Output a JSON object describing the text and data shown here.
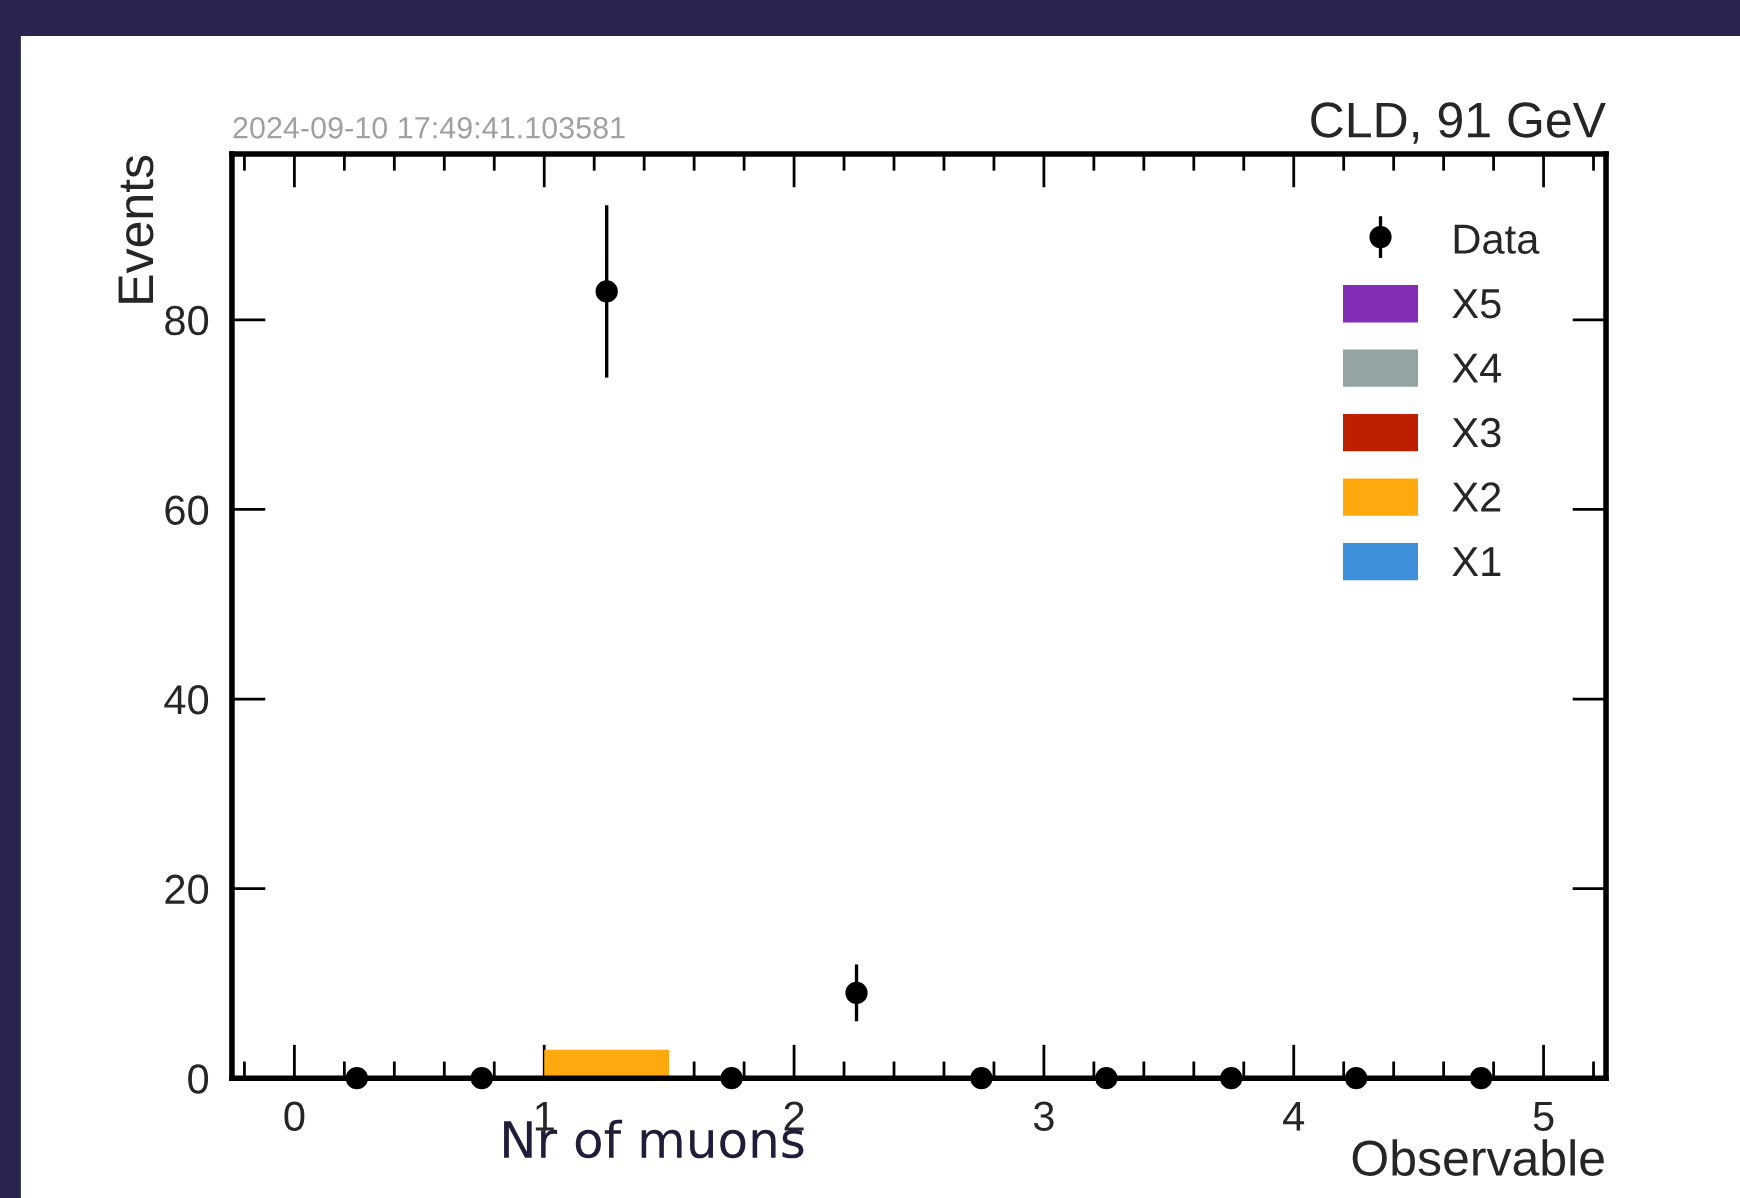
{
  "chart_data": {
    "type": "bar",
    "title": "CLD, 91 GeV",
    "xlabel": "Observable",
    "ylabel": "Events",
    "annotations": [
      "2024-09-10 17:49:41.103581",
      "Nr of muons"
    ],
    "x": [
      0.25,
      0.75,
      1.25,
      1.75,
      2.25,
      2.75,
      3.25,
      3.75,
      4.25,
      4.75
    ],
    "stacked": true,
    "series": [
      {
        "name": "X1",
        "color": "#3f90da",
        "values": [
          0,
          0,
          0,
          0,
          0,
          0,
          0,
          0,
          0,
          0
        ]
      },
      {
        "name": "X2",
        "color": "#ffa90e",
        "values": [
          0,
          0,
          3,
          0,
          0,
          0,
          0,
          0,
          0,
          0
        ]
      },
      {
        "name": "X3",
        "color": "#bd1f01",
        "values": [
          0,
          0,
          0,
          0,
          0,
          0,
          0,
          0,
          0,
          0
        ]
      },
      {
        "name": "X4",
        "color": "#94a4a2",
        "values": [
          0,
          0,
          0,
          0,
          0,
          0,
          0,
          0,
          0,
          0
        ]
      },
      {
        "name": "X5",
        "color": "#832db6",
        "values": [
          0,
          0,
          0,
          0,
          0,
          0,
          0,
          0,
          0,
          0
        ]
      },
      {
        "name": "Data",
        "type": "scatter",
        "color": "#000000",
        "marker": "circle",
        "values": [
          0,
          0,
          83,
          0,
          9,
          0,
          0,
          0,
          0,
          0
        ],
        "errors": [
          0,
          0,
          9.1,
          0,
          3,
          0,
          0,
          0,
          0,
          0
        ]
      }
    ],
    "xlim": [
      -0.25,
      5.25
    ],
    "xticks": [
      0,
      1,
      2,
      3,
      4,
      5
    ],
    "ylim": [
      0,
      97.5
    ],
    "yticks": [
      0,
      20,
      40,
      60,
      80
    ],
    "legend": "top right",
    "grid": false
  }
}
